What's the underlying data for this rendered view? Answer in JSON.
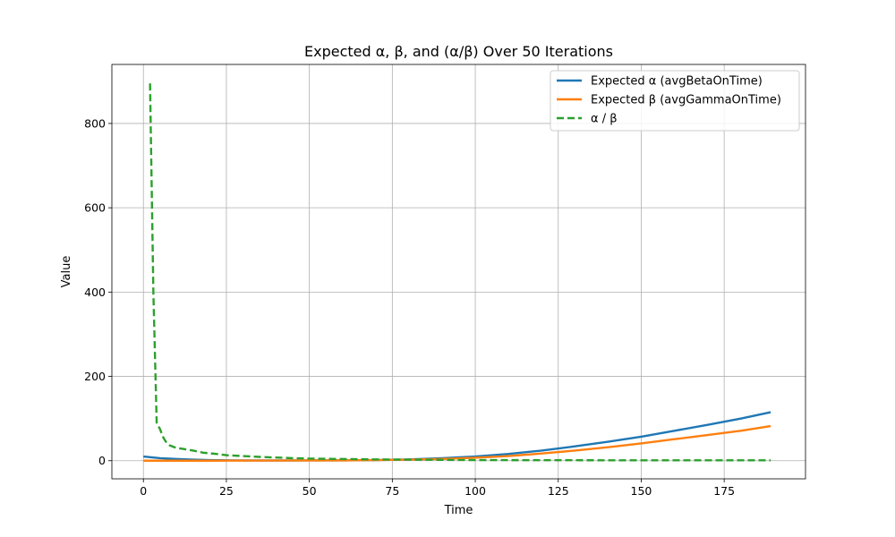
{
  "chart_data": {
    "type": "line",
    "title": "Expected α, β, and (α/β) Over 50 Iterations",
    "xlabel": "Time",
    "ylabel": "Value",
    "xlim": [
      -9.5,
      199.5
    ],
    "ylim": [
      -43,
      940
    ],
    "xticks": [
      0,
      25,
      50,
      75,
      100,
      125,
      150,
      175
    ],
    "yticks": [
      0,
      200,
      400,
      600,
      800
    ],
    "grid": true,
    "legend_position": "top-right",
    "series": [
      {
        "name": "Expected α (avgBetaOnTime)",
        "color": "#1f77b4",
        "style": "solid",
        "points": [
          [
            0,
            10
          ],
          [
            5,
            6
          ],
          [
            10,
            4
          ],
          [
            15,
            2.5
          ],
          [
            20,
            1.5
          ],
          [
            25,
            1
          ],
          [
            30,
            0.6
          ],
          [
            40,
            0.5
          ],
          [
            50,
            0.6
          ],
          [
            60,
            0.8
          ],
          [
            70,
            1.5
          ],
          [
            80,
            3
          ],
          [
            90,
            6
          ],
          [
            100,
            10
          ],
          [
            110,
            16
          ],
          [
            120,
            24
          ],
          [
            130,
            34
          ],
          [
            140,
            45
          ],
          [
            150,
            57
          ],
          [
            160,
            71
          ],
          [
            170,
            85
          ],
          [
            180,
            100
          ],
          [
            189,
            115
          ]
        ]
      },
      {
        "name": "Expected β (avgGammaOnTime)",
        "color": "#ff7f0e",
        "style": "solid",
        "points": [
          [
            0,
            0
          ],
          [
            20,
            0
          ],
          [
            40,
            0.3
          ],
          [
            60,
            0.8
          ],
          [
            70,
            1.5
          ],
          [
            80,
            2.5
          ],
          [
            90,
            4
          ],
          [
            100,
            7
          ],
          [
            110,
            11
          ],
          [
            120,
            17
          ],
          [
            130,
            24
          ],
          [
            140,
            32
          ],
          [
            150,
            41
          ],
          [
            160,
            51
          ],
          [
            170,
            61
          ],
          [
            180,
            71
          ],
          [
            189,
            82
          ]
        ]
      },
      {
        "name": "α / β",
        "color": "#2ca02c",
        "style": "dashed",
        "points": [
          [
            2,
            895
          ],
          [
            3,
            400
          ],
          [
            4,
            90
          ],
          [
            5,
            75
          ],
          [
            6,
            55
          ],
          [
            7,
            42
          ],
          [
            8,
            36
          ],
          [
            10,
            30
          ],
          [
            12,
            28
          ],
          [
            15,
            24
          ],
          [
            18,
            19
          ],
          [
            22,
            16
          ],
          [
            25,
            13
          ],
          [
            30,
            11
          ],
          [
            35,
            9
          ],
          [
            40,
            7.5
          ],
          [
            45,
            6
          ],
          [
            50,
            5
          ],
          [
            60,
            4
          ],
          [
            70,
            3
          ],
          [
            80,
            2.5
          ],
          [
            90,
            2
          ],
          [
            100,
            1.5
          ],
          [
            120,
            1.2
          ],
          [
            140,
            1
          ],
          [
            160,
            1
          ],
          [
            189,
            1
          ]
        ]
      }
    ]
  }
}
